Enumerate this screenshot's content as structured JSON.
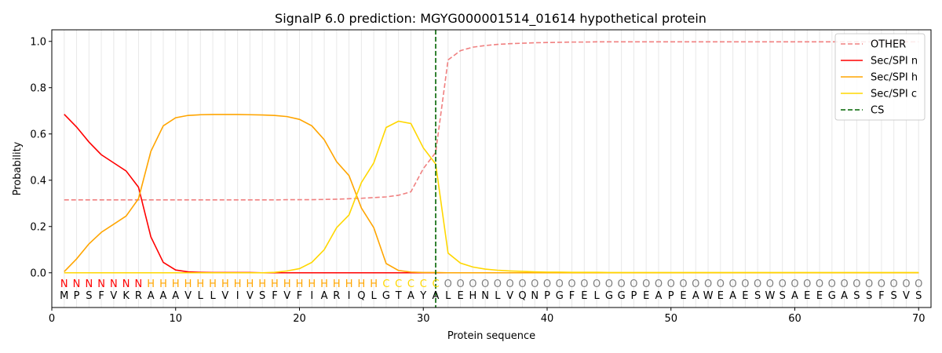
{
  "chart_data": {
    "type": "line",
    "title": "SignalP 6.0 prediction: MGYG000001514_01614 hypothetical protein",
    "xlabel": "Protein sequence",
    "ylabel": "Probability",
    "xlim": [
      0,
      71
    ],
    "ylim": [
      -0.15,
      1.05
    ],
    "xticks": [
      0,
      10,
      20,
      30,
      40,
      50,
      60,
      70
    ],
    "yticks": [
      0.0,
      0.2,
      0.4,
      0.6,
      0.8,
      1.0
    ],
    "xtick_labels": [
      "0",
      "10",
      "20",
      "30",
      "40",
      "50",
      "60",
      "70"
    ],
    "ytick_labels": [
      "0.0",
      "0.2",
      "0.4",
      "0.6",
      "0.8",
      "1.0"
    ],
    "grid": "vertical lines at each residue",
    "legend_position": "top-right",
    "sequence": [
      "M",
      "P",
      "S",
      "F",
      "V",
      "K",
      "R",
      "A",
      "A",
      "A",
      "V",
      "L",
      "L",
      "V",
      "I",
      "V",
      "S",
      "F",
      "V",
      "F",
      "I",
      "A",
      "R",
      "I",
      "Q",
      "L",
      "G",
      "T",
      "A",
      "Y",
      "A",
      "L",
      "E",
      "H",
      "N",
      "L",
      "V",
      "Q",
      "N",
      "P",
      "G",
      "F",
      "E",
      "L",
      "G",
      "G",
      "P",
      "E",
      "A",
      "P",
      "E",
      "A",
      "W",
      "E",
      "A",
      "E",
      "S",
      "W",
      "S",
      "A",
      "E",
      "E",
      "G",
      "A",
      "S",
      "S",
      "F",
      "S",
      "V",
      "S"
    ],
    "annotation": [
      "N",
      "N",
      "N",
      "N",
      "N",
      "N",
      "N",
      "H",
      "H",
      "H",
      "H",
      "H",
      "H",
      "H",
      "H",
      "H",
      "H",
      "H",
      "H",
      "H",
      "H",
      "H",
      "H",
      "H",
      "H",
      "H",
      "C",
      "C",
      "C",
      "C",
      "C",
      "O",
      "O",
      "O",
      "O",
      "O",
      "O",
      "O",
      "O",
      "O",
      "O",
      "O",
      "O",
      "O",
      "O",
      "O",
      "O",
      "O",
      "O",
      "O",
      "O",
      "O",
      "O",
      "O",
      "O",
      "O",
      "O",
      "O",
      "O",
      "O",
      "O",
      "O",
      "O",
      "O",
      "O",
      "O",
      "O",
      "O",
      "O",
      "O"
    ],
    "annotation_colors": {
      "N": "#ff0000",
      "H": "#ffa500",
      "C": "#ffd700",
      "O": "#808080"
    },
    "cleavage_site": 31,
    "series": [
      {
        "name": "OTHER",
        "color": "#f08080",
        "dash": true,
        "values": [
          0.315,
          0.315,
          0.315,
          0.315,
          0.315,
          0.315,
          0.315,
          0.315,
          0.315,
          0.315,
          0.315,
          0.315,
          0.315,
          0.315,
          0.315,
          0.315,
          0.315,
          0.315,
          0.316,
          0.316,
          0.316,
          0.317,
          0.318,
          0.32,
          0.322,
          0.325,
          0.328,
          0.335,
          0.35,
          0.45,
          0.52,
          0.92,
          0.96,
          0.975,
          0.982,
          0.987,
          0.99,
          0.992,
          0.994,
          0.995,
          0.996,
          0.997,
          0.997,
          0.998,
          0.998,
          0.998,
          0.998,
          0.998,
          0.998,
          0.998,
          0.998,
          0.998,
          0.998,
          0.998,
          0.998,
          0.998,
          0.998,
          0.998,
          0.998,
          0.998,
          0.998,
          0.998,
          0.998,
          0.998,
          0.998,
          0.998,
          0.998,
          0.998,
          0.998,
          0.998
        ]
      },
      {
        "name": "Sec/SPI n",
        "color": "#ff0000",
        "dash": false,
        "values": [
          0.685,
          0.63,
          0.565,
          0.51,
          0.475,
          0.44,
          0.37,
          0.155,
          0.045,
          0.012,
          0.004,
          0.002,
          0.001,
          0.001,
          0.001,
          0.001,
          0,
          0,
          0,
          0,
          0,
          0,
          0,
          0,
          0,
          0,
          0,
          0,
          0,
          0,
          0,
          0,
          0,
          0,
          0,
          0,
          0,
          0,
          0,
          0,
          0,
          0,
          0,
          0,
          0,
          0,
          0,
          0,
          0,
          0,
          0,
          0,
          0,
          0,
          0,
          0,
          0,
          0,
          0,
          0,
          0,
          0,
          0,
          0,
          0,
          0,
          0,
          0,
          0,
          0
        ]
      },
      {
        "name": "Sec/SPI h",
        "color": "#ffa500",
        "dash": false,
        "values": [
          0.005,
          0.06,
          0.125,
          0.175,
          0.21,
          0.245,
          0.32,
          0.525,
          0.635,
          0.67,
          0.68,
          0.683,
          0.684,
          0.684,
          0.684,
          0.683,
          0.682,
          0.68,
          0.675,
          0.663,
          0.635,
          0.575,
          0.48,
          0.42,
          0.28,
          0.195,
          0.04,
          0.01,
          0.003,
          0.001,
          0.001,
          0,
          0,
          0,
          0,
          0,
          0,
          0,
          0,
          0,
          0,
          0,
          0,
          0,
          0,
          0,
          0,
          0,
          0,
          0,
          0,
          0,
          0,
          0,
          0,
          0,
          0,
          0,
          0,
          0,
          0,
          0,
          0,
          0,
          0,
          0,
          0,
          0,
          0,
          0
        ]
      },
      {
        "name": "Sec/SPI c",
        "color": "#ffd700",
        "dash": false,
        "values": [
          0,
          0,
          0,
          0,
          0,
          0,
          0,
          0,
          0,
          0,
          0,
          0,
          0,
          0,
          0,
          0,
          0,
          0.002,
          0.008,
          0.018,
          0.045,
          0.1,
          0.195,
          0.25,
          0.39,
          0.475,
          0.628,
          0.655,
          0.645,
          0.54,
          0.47,
          0.085,
          0.042,
          0.025,
          0.016,
          0.011,
          0.008,
          0.006,
          0.004,
          0.003,
          0.003,
          0.002,
          0.002,
          0.002,
          0.001,
          0.001,
          0.001,
          0.001,
          0.001,
          0.001,
          0.001,
          0.001,
          0.001,
          0.001,
          0.001,
          0.001,
          0.001,
          0.001,
          0.001,
          0.001,
          0.001,
          0.001,
          0.001,
          0.001,
          0.001,
          0.001,
          0.001,
          0.001,
          0.001,
          0.001
        ]
      }
    ],
    "cs_legend": {
      "name": "CS",
      "color": "#006400"
    }
  }
}
